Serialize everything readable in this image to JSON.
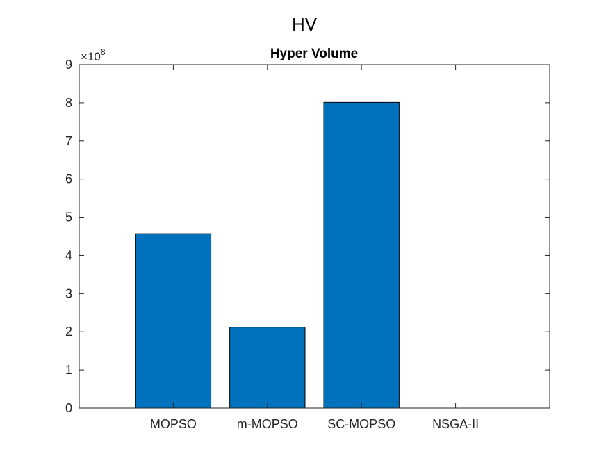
{
  "figure_title": "HV",
  "chart_data": {
    "type": "bar",
    "title": "Hyper Volume",
    "xlabel": "",
    "ylabel": "",
    "categories": [
      "MOPSO",
      "m-MOPSO",
      "SC-MOPSO",
      "NSGA-II"
    ],
    "values": [
      457000000,
      212000000,
      801000000,
      0
    ],
    "ylim": [
      0,
      900000000
    ],
    "y_ticks": [
      0,
      1,
      2,
      3,
      4,
      5,
      6,
      7,
      8,
      9
    ],
    "y_exponent": {
      "base": "10",
      "power": "8"
    },
    "grid": false,
    "legend": "none",
    "bar_color": "#0072BD",
    "bar_edge_color": "#000000"
  }
}
